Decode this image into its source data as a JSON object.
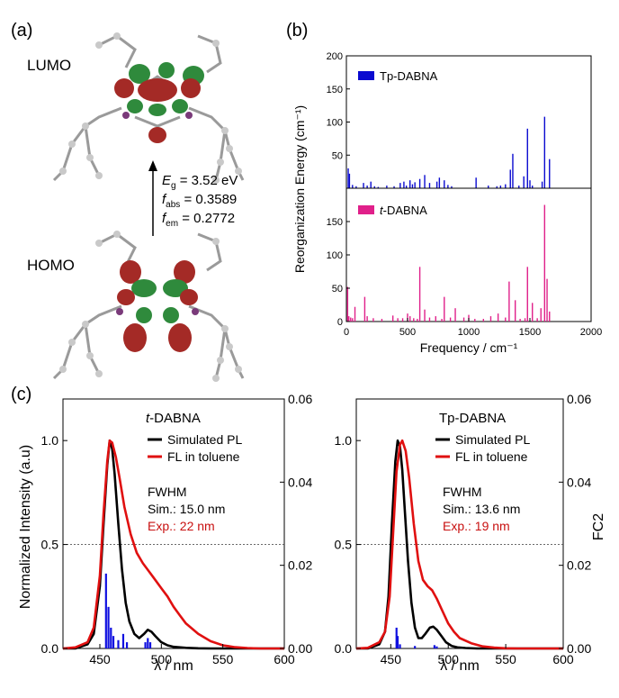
{
  "panel_labels": {
    "a": "(a)",
    "b": "(b)",
    "c": "(c)"
  },
  "panel_a": {
    "lumo_label": "LUMO",
    "homo_label": "HOMO",
    "eg": {
      "sym": "E",
      "sub": "g",
      "value": " = 3.52 eV"
    },
    "fabs": {
      "sym": "f",
      "sub": "abs",
      "value": " = 0.3589"
    },
    "fem": {
      "sym": "f",
      "sub": "em",
      "value": " = 0.2772"
    }
  },
  "chart_data": [
    {
      "id": "b-top",
      "type": "bar",
      "legend": "Tp-DABNA",
      "color": "#0a0ad0",
      "ylabel": "Reorganization Energy (cm⁻¹)",
      "xlim": [
        0,
        2000
      ],
      "ylim": [
        0,
        200
      ],
      "yticks": [
        50,
        100,
        150,
        200
      ],
      "x": [
        15,
        25,
        50,
        80,
        140,
        170,
        200,
        230,
        260,
        330,
        390,
        440,
        470,
        490,
        520,
        540,
        560,
        600,
        640,
        680,
        740,
        760,
        800,
        830,
        860,
        1060,
        1160,
        1230,
        1260,
        1300,
        1340,
        1360,
        1410,
        1450,
        1480,
        1500,
        1520,
        1600,
        1620,
        1660
      ],
      "values": [
        30,
        22,
        5,
        3,
        8,
        4,
        10,
        3,
        2,
        4,
        3,
        8,
        10,
        4,
        12,
        6,
        9,
        14,
        20,
        8,
        10,
        16,
        12,
        5,
        3,
        16,
        4,
        3,
        4,
        6,
        28,
        52,
        4,
        18,
        90,
        12,
        4,
        10,
        108,
        44
      ]
    },
    {
      "id": "b-bottom",
      "type": "bar",
      "legend": "t-DABNA",
      "legend_italic_prefix": "t",
      "legend_rest": "-DABNA",
      "color": "#e0208a",
      "xlabel": "Frequency / cm⁻¹",
      "xlim": [
        0,
        2000
      ],
      "ylim": [
        0,
        200
      ],
      "yticks": [
        0,
        50,
        100,
        150
      ],
      "xticks": [
        0,
        500,
        1000,
        1500,
        2000
      ],
      "x": [
        10,
        20,
        35,
        50,
        70,
        150,
        170,
        220,
        290,
        380,
        420,
        460,
        500,
        520,
        550,
        580,
        600,
        640,
        680,
        730,
        780,
        800,
        850,
        890,
        960,
        1000,
        1050,
        1120,
        1180,
        1240,
        1300,
        1330,
        1380,
        1420,
        1460,
        1480,
        1520,
        1560,
        1590,
        1620,
        1640,
        1660
      ],
      "values": [
        52,
        8,
        6,
        5,
        22,
        37,
        8,
        5,
        4,
        9,
        5,
        5,
        12,
        8,
        5,
        4,
        82,
        18,
        6,
        8,
        4,
        37,
        6,
        20,
        6,
        10,
        4,
        4,
        8,
        12,
        6,
        60,
        32,
        4,
        5,
        82,
        28,
        5,
        20,
        175,
        64,
        15
      ]
    },
    {
      "id": "c-left",
      "type": "line",
      "title_italic": "t",
      "title_rest": "-DABNA",
      "title": "t-DABNA",
      "xlabel": "λ / nm",
      "ylabel": "Normalized Intensity (a.u)",
      "xlim": [
        420,
        600
      ],
      "ylim": [
        0,
        1.2
      ],
      "y2lim": [
        0,
        0.06
      ],
      "xticks": [
        450,
        500,
        550,
        600
      ],
      "yticks": [
        0.0,
        0.5,
        1.0
      ],
      "y2ticks": [
        0.0,
        0.02,
        0.04,
        0.06
      ],
      "legend": [
        "Simulated PL",
        "FL in toluene"
      ],
      "fwhm_label": "FWHM",
      "sim": "Sim.: 15.0 nm",
      "exp": "Exp.: 22 nm",
      "simulated_pl": {
        "color": "#000000",
        "x": [
          420,
          430,
          440,
          445,
          450,
          453,
          456,
          458,
          460,
          462,
          465,
          468,
          471,
          474,
          478,
          482,
          486,
          489,
          492,
          495,
          500,
          505,
          510,
          520,
          530,
          540,
          560,
          600
        ],
        "y": [
          0.0,
          0.0,
          0.02,
          0.07,
          0.3,
          0.6,
          0.88,
          1.0,
          0.96,
          0.84,
          0.6,
          0.38,
          0.22,
          0.13,
          0.07,
          0.05,
          0.07,
          0.09,
          0.08,
          0.06,
          0.03,
          0.015,
          0.008,
          0.003,
          0.001,
          0.0,
          0.0,
          0.0
        ]
      },
      "fl_toluene": {
        "color": "#e01010",
        "x": [
          420,
          430,
          440,
          445,
          450,
          453,
          456,
          458,
          460,
          463,
          466,
          470,
          475,
          480,
          485,
          490,
          495,
          500,
          505,
          510,
          515,
          520,
          530,
          540,
          550,
          560,
          570,
          580,
          600
        ],
        "y": [
          0.0,
          0.005,
          0.03,
          0.1,
          0.35,
          0.65,
          0.9,
          1.0,
          0.99,
          0.92,
          0.82,
          0.68,
          0.55,
          0.46,
          0.41,
          0.37,
          0.33,
          0.29,
          0.25,
          0.2,
          0.16,
          0.12,
          0.07,
          0.035,
          0.015,
          0.006,
          0.002,
          0.0,
          0.0
        ]
      },
      "sticks": {
        "color": "#1010e0",
        "x": [
          455,
          457,
          459,
          461,
          465,
          469,
          472,
          487,
          489,
          491
        ],
        "y": [
          0.018,
          0.01,
          0.005,
          0.003,
          0.002,
          0.0035,
          0.0015,
          0.0015,
          0.0025,
          0.0015
        ]
      }
    },
    {
      "id": "c-right",
      "type": "line",
      "title": "Tp-DABNA",
      "xlabel": "λ / nm",
      "y2label": "FC2",
      "xlim": [
        420,
        600
      ],
      "ylim": [
        0,
        1.2
      ],
      "y2lim": [
        0,
        0.06
      ],
      "xticks": [
        450,
        500,
        550,
        600
      ],
      "yticks": [
        0.0,
        0.5,
        1.0
      ],
      "y2ticks": [
        0.0,
        0.02,
        0.04,
        0.06
      ],
      "legend": [
        "Simulated PL",
        "FL in toluene"
      ],
      "fwhm_label": "FWHM",
      "sim": "Sim.: 13.6 nm",
      "exp": "Exp.: 19 nm",
      "simulated_pl": {
        "color": "#000000",
        "x": [
          420,
          430,
          440,
          445,
          448,
          451,
          454,
          456,
          458,
          460,
          462,
          465,
          468,
          471,
          474,
          477,
          480,
          484,
          487,
          490,
          494,
          498,
          503,
          508,
          515,
          525,
          540,
          600
        ],
        "y": [
          0.0,
          0.0,
          0.02,
          0.08,
          0.25,
          0.6,
          0.9,
          1.0,
          0.97,
          0.86,
          0.68,
          0.42,
          0.22,
          0.1,
          0.05,
          0.05,
          0.07,
          0.1,
          0.105,
          0.09,
          0.06,
          0.03,
          0.012,
          0.005,
          0.002,
          0.0,
          0.0,
          0.0
        ]
      },
      "fl_toluene": {
        "color": "#e01010",
        "x": [
          420,
          430,
          440,
          445,
          449,
          452,
          455,
          458,
          460,
          463,
          466,
          470,
          474,
          478,
          482,
          486,
          490,
          495,
          500,
          505,
          510,
          520,
          530,
          540,
          550,
          560,
          600
        ],
        "y": [
          0.0,
          0.003,
          0.03,
          0.08,
          0.25,
          0.55,
          0.85,
          0.98,
          1.0,
          0.95,
          0.82,
          0.6,
          0.42,
          0.33,
          0.3,
          0.28,
          0.24,
          0.18,
          0.12,
          0.08,
          0.05,
          0.025,
          0.01,
          0.004,
          0.001,
          0.0,
          0.0
        ]
      },
      "sticks": {
        "color": "#1010e0",
        "x": [
          455,
          456,
          458,
          471,
          488,
          490
        ],
        "y": [
          0.005,
          0.003,
          0.001,
          0.0006,
          0.0008,
          0.0005
        ]
      }
    }
  ]
}
